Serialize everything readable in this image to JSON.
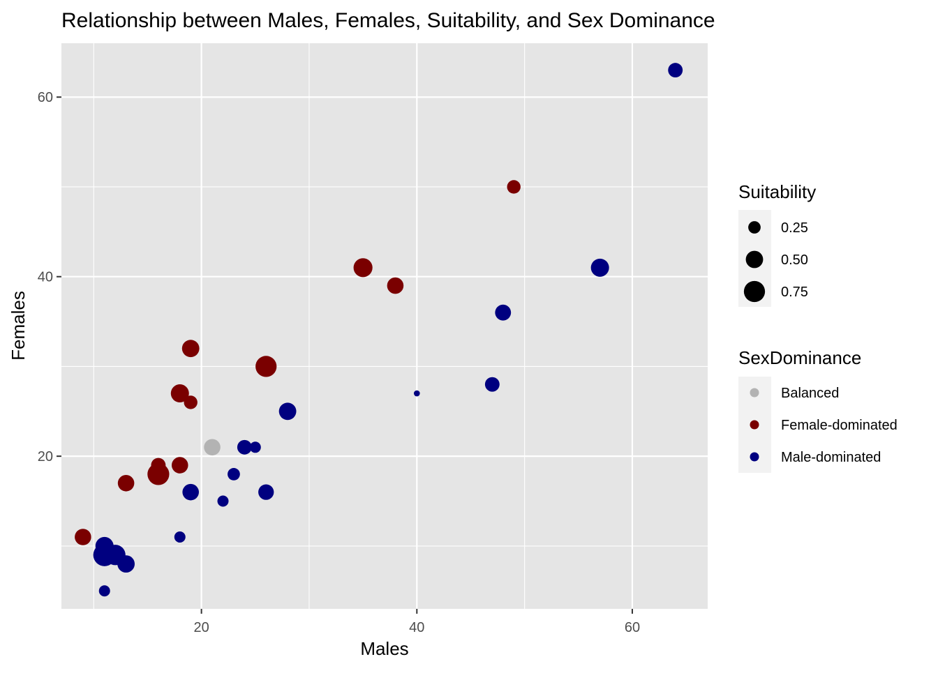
{
  "chart_data": {
    "type": "scatter",
    "title": "Relationship between Males, Females, Suitability, and Sex Dominance",
    "xlabel": "Males",
    "ylabel": "Females",
    "xlim": [
      7,
      67
    ],
    "ylim": [
      3,
      66
    ],
    "x_ticks": [
      20,
      40,
      60
    ],
    "y_ticks": [
      20,
      40,
      60
    ],
    "x_minor": [
      10,
      30,
      50
    ],
    "y_minor": [
      10,
      30,
      50
    ],
    "grid": true,
    "panel_background": "#e5e5e5",
    "legends": {
      "size": {
        "title": "Suitability",
        "entries": [
          {
            "label": "0.25",
            "value": 0.25
          },
          {
            "label": "0.50",
            "value": 0.5
          },
          {
            "label": "0.75",
            "value": 0.75
          }
        ]
      },
      "color": {
        "title": "SexDominance",
        "entries": [
          {
            "label": "Balanced",
            "color": "#b3b3b3"
          },
          {
            "label": "Female-dominated",
            "color": "#7a0000"
          },
          {
            "label": "Male-dominated",
            "color": "#000080"
          }
        ]
      },
      "placement": "right"
    },
    "points": [
      {
        "x": 64,
        "y": 63,
        "suitability": 0.35,
        "group": "Male-dominated"
      },
      {
        "x": 49,
        "y": 50,
        "suitability": 0.3,
        "group": "Female-dominated"
      },
      {
        "x": 35,
        "y": 41,
        "suitability": 0.6,
        "group": "Female-dominated"
      },
      {
        "x": 38,
        "y": 39,
        "suitability": 0.45,
        "group": "Female-dominated"
      },
      {
        "x": 57,
        "y": 41,
        "suitability": 0.55,
        "group": "Male-dominated"
      },
      {
        "x": 48,
        "y": 36,
        "suitability": 0.42,
        "group": "Male-dominated"
      },
      {
        "x": 19,
        "y": 32,
        "suitability": 0.5,
        "group": "Female-dominated"
      },
      {
        "x": 26,
        "y": 30,
        "suitability": 0.75,
        "group": "Female-dominated"
      },
      {
        "x": 18,
        "y": 27,
        "suitability": 0.55,
        "group": "Female-dominated"
      },
      {
        "x": 19,
        "y": 26,
        "suitability": 0.3,
        "group": "Female-dominated"
      },
      {
        "x": 40,
        "y": 27,
        "suitability": 0.05,
        "group": "Male-dominated"
      },
      {
        "x": 47,
        "y": 28,
        "suitability": 0.35,
        "group": "Male-dominated"
      },
      {
        "x": 28,
        "y": 25,
        "suitability": 0.5,
        "group": "Male-dominated"
      },
      {
        "x": 21,
        "y": 21,
        "suitability": 0.45,
        "group": "Balanced"
      },
      {
        "x": 24,
        "y": 21,
        "suitability": 0.35,
        "group": "Male-dominated"
      },
      {
        "x": 25,
        "y": 21,
        "suitability": 0.2,
        "group": "Male-dominated"
      },
      {
        "x": 16,
        "y": 19,
        "suitability": 0.35,
        "group": "Female-dominated"
      },
      {
        "x": 18,
        "y": 19,
        "suitability": 0.45,
        "group": "Female-dominated"
      },
      {
        "x": 16,
        "y": 18,
        "suitability": 0.8,
        "group": "Female-dominated"
      },
      {
        "x": 23,
        "y": 18,
        "suitability": 0.25,
        "group": "Male-dominated"
      },
      {
        "x": 13,
        "y": 17,
        "suitability": 0.45,
        "group": "Female-dominated"
      },
      {
        "x": 19,
        "y": 16,
        "suitability": 0.45,
        "group": "Male-dominated"
      },
      {
        "x": 26,
        "y": 16,
        "suitability": 0.4,
        "group": "Male-dominated"
      },
      {
        "x": 22,
        "y": 15,
        "suitability": 0.2,
        "group": "Male-dominated"
      },
      {
        "x": 9,
        "y": 11,
        "suitability": 0.45,
        "group": "Female-dominated"
      },
      {
        "x": 18,
        "y": 11,
        "suitability": 0.2,
        "group": "Male-dominated"
      },
      {
        "x": 11,
        "y": 10,
        "suitability": 0.55,
        "group": "Male-dominated"
      },
      {
        "x": 12,
        "y": 9,
        "suitability": 0.7,
        "group": "Male-dominated"
      },
      {
        "x": 11,
        "y": 9,
        "suitability": 0.85,
        "group": "Male-dominated"
      },
      {
        "x": 13,
        "y": 8,
        "suitability": 0.5,
        "group": "Male-dominated"
      },
      {
        "x": 11,
        "y": 5,
        "suitability": 0.2,
        "group": "Male-dominated"
      }
    ]
  }
}
